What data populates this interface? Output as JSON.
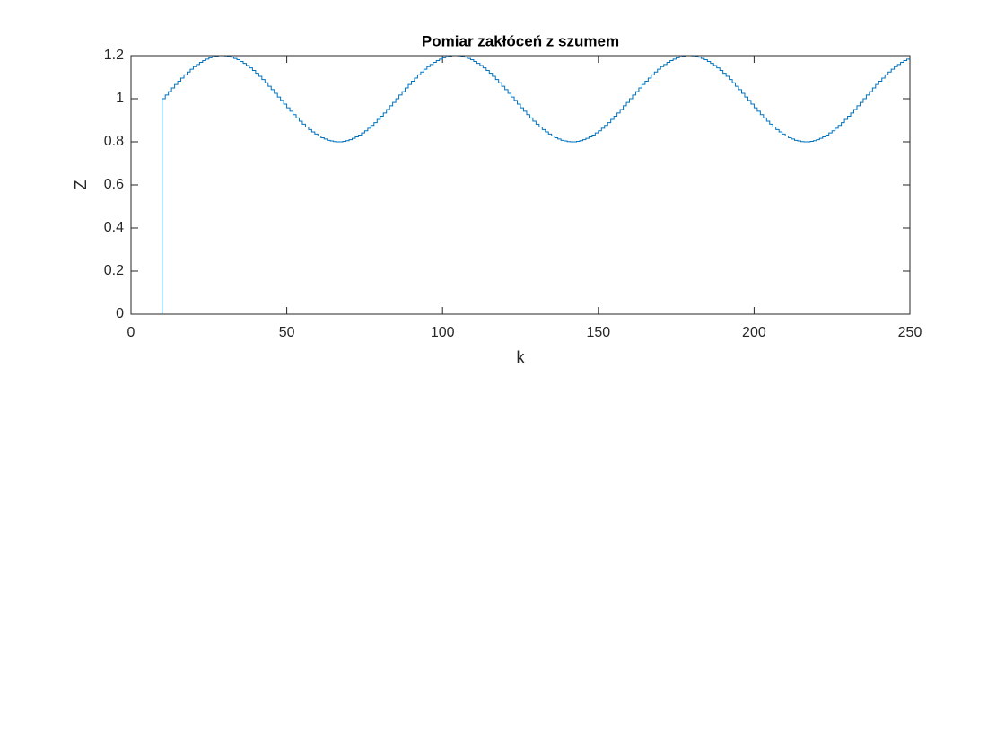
{
  "chart_data": {
    "type": "stairs",
    "title": "Pomiar zakłóceń z szumem",
    "xlabel": "k",
    "ylabel": "Z",
    "color": "#0072bd",
    "xlim": [
      0,
      250
    ],
    "xticks": [
      0,
      50,
      100,
      150,
      200,
      250
    ],
    "ylim": [
      0,
      1.2
    ],
    "yticks": [
      0,
      0.2,
      0.4,
      0.6,
      0.8,
      1,
      1.2
    ],
    "grid": false,
    "x": [
      0,
      1,
      2,
      3,
      4,
      5,
      6,
      7,
      8,
      9,
      10,
      11,
      12,
      13,
      14,
      15,
      16,
      17,
      18,
      19,
      20,
      21,
      22,
      23,
      24,
      25,
      26,
      27,
      28,
      29,
      30,
      31,
      32,
      33,
      34,
      35,
      36,
      37,
      38,
      39,
      40,
      41,
      42,
      43,
      44,
      45,
      46,
      47,
      48,
      49,
      50,
      51,
      52,
      53,
      54,
      55,
      56,
      57,
      58,
      59,
      60,
      61,
      62,
      63,
      64,
      65,
      66,
      67,
      68,
      69,
      70,
      71,
      72,
      73,
      74,
      75,
      76,
      77,
      78,
      79,
      80,
      81,
      82,
      83,
      84,
      85,
      86,
      87,
      88,
      89,
      90,
      91,
      92,
      93,
      94,
      95,
      96,
      97,
      98,
      99,
      100,
      101,
      102,
      103,
      104,
      105,
      106,
      107,
      108,
      109,
      110,
      111,
      112,
      113,
      114,
      115,
      116,
      117,
      118,
      119,
      120,
      121,
      122,
      123,
      124,
      125,
      126,
      127,
      128,
      129,
      130,
      131,
      132,
      133,
      134,
      135,
      136,
      137,
      138,
      139,
      140,
      141,
      142,
      143,
      144,
      145,
      146,
      147,
      148,
      149,
      150,
      151,
      152,
      153,
      154,
      155,
      156,
      157,
      158,
      159,
      160,
      161,
      162,
      163,
      164,
      165,
      166,
      167,
      168,
      169,
      170,
      171,
      172,
      173,
      174,
      175,
      176,
      177,
      178,
      179,
      180,
      181,
      182,
      183,
      184,
      185,
      186,
      187,
      188,
      189,
      190,
      191,
      192,
      193,
      194,
      195,
      196,
      197,
      198,
      199,
      200,
      201,
      202,
      203,
      204,
      205,
      206,
      207,
      208,
      209,
      210,
      211,
      212,
      213,
      214,
      215,
      216,
      217,
      218,
      219,
      220,
      221,
      222,
      223,
      224,
      225,
      226,
      227,
      228,
      229,
      230,
      231,
      232,
      233,
      234,
      235,
      236,
      237,
      238,
      239,
      240,
      241,
      242,
      243,
      244,
      245,
      246,
      247,
      248,
      249,
      250
    ],
    "values": [
      0,
      0,
      0,
      0,
      0,
      0,
      0,
      0,
      0,
      0,
      1.0,
      1.017,
      1.033,
      1.05,
      1.066,
      1.081,
      1.096,
      1.111,
      1.124,
      1.137,
      1.149,
      1.159,
      1.169,
      1.177,
      1.184,
      1.19,
      1.195,
      1.198,
      1.2,
      1.2,
      1.199,
      1.196,
      1.193,
      1.187,
      1.181,
      1.173,
      1.164,
      1.154,
      1.143,
      1.131,
      1.118,
      1.104,
      1.089,
      1.074,
      1.058,
      1.042,
      1.025,
      1.008,
      0.992,
      0.975,
      0.958,
      0.942,
      0.926,
      0.911,
      0.896,
      0.882,
      0.869,
      0.857,
      0.846,
      0.836,
      0.827,
      0.819,
      0.813,
      0.807,
      0.804,
      0.801,
      0.8,
      0.8,
      0.802,
      0.805,
      0.81,
      0.816,
      0.823,
      0.831,
      0.841,
      0.851,
      0.863,
      0.876,
      0.889,
      0.904,
      0.919,
      0.934,
      0.95,
      0.967,
      0.983,
      1.0,
      1.017,
      1.033,
      1.05,
      1.066,
      1.081,
      1.096,
      1.111,
      1.124,
      1.137,
      1.149,
      1.159,
      1.169,
      1.177,
      1.184,
      1.19,
      1.195,
      1.198,
      1.2,
      1.2,
      1.199,
      1.196,
      1.193,
      1.187,
      1.181,
      1.173,
      1.164,
      1.154,
      1.143,
      1.131,
      1.118,
      1.104,
      1.089,
      1.074,
      1.058,
      1.042,
      1.025,
      1.008,
      0.992,
      0.975,
      0.958,
      0.942,
      0.926,
      0.911,
      0.896,
      0.882,
      0.869,
      0.857,
      0.846,
      0.836,
      0.827,
      0.819,
      0.813,
      0.807,
      0.804,
      0.801,
      0.8,
      0.8,
      0.802,
      0.805,
      0.81,
      0.816,
      0.823,
      0.831,
      0.841,
      0.851,
      0.863,
      0.876,
      0.889,
      0.904,
      0.919,
      0.934,
      0.95,
      0.967,
      0.983,
      1.0,
      1.017,
      1.033,
      1.05,
      1.066,
      1.081,
      1.096,
      1.111,
      1.124,
      1.137,
      1.149,
      1.159,
      1.169,
      1.177,
      1.184,
      1.19,
      1.195,
      1.198,
      1.2,
      1.2,
      1.199,
      1.196,
      1.193,
      1.187,
      1.181,
      1.173,
      1.164,
      1.154,
      1.143,
      1.131,
      1.118,
      1.104,
      1.089,
      1.074,
      1.058,
      1.042,
      1.025,
      1.008,
      0.992,
      0.975,
      0.958,
      0.942,
      0.926,
      0.911,
      0.896,
      0.882,
      0.869,
      0.857,
      0.846,
      0.836,
      0.827,
      0.819,
      0.813,
      0.807,
      0.804,
      0.801,
      0.8,
      0.8,
      0.802,
      0.805,
      0.81,
      0.816,
      0.823,
      0.831,
      0.841,
      0.851,
      0.863,
      0.876,
      0.889,
      0.904,
      0.919,
      0.934,
      0.95,
      0.967,
      0.983,
      1.0,
      1.017,
      1.033,
      1.05,
      1.066,
      1.081,
      1.096,
      1.111,
      1.124,
      1.137,
      1.149,
      1.159,
      1.169,
      1.177,
      1.184,
      1.19
    ]
  }
}
